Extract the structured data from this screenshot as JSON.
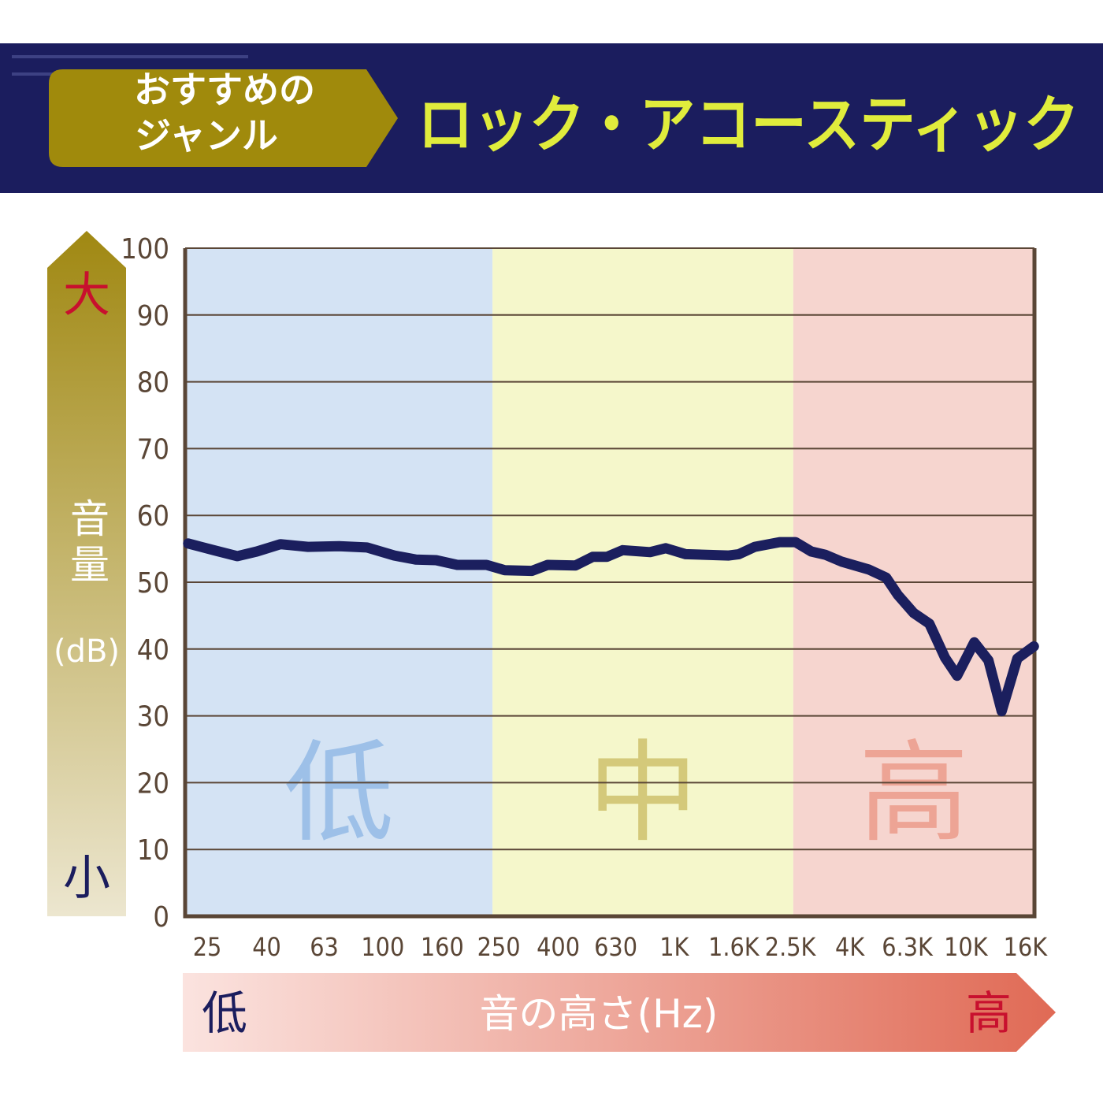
{
  "header": {
    "label_lines": [
      "おすすめの",
      "ジャンル"
    ],
    "genre": "ロック・アコースティック"
  },
  "chart_data": {
    "type": "line",
    "y_axis_label": {
      "top": "大",
      "label": "音量",
      "unit": "(dB)",
      "bottom": "小"
    },
    "x_axis_label": {
      "low": "低",
      "label": "音の高さ(Hz)",
      "high": "高"
    },
    "xscale": "log",
    "xlim": [
      21,
      17200
    ],
    "xticks": [
      25,
      40,
      63,
      100,
      160,
      250,
      400,
      630,
      {
        "value": 1000,
        "label": "1K"
      },
      {
        "value": 1600,
        "label": "1.6K"
      },
      {
        "value": 2500,
        "label": "2.5K"
      },
      {
        "value": 4000,
        "label": "4K"
      },
      {
        "value": 6300,
        "label": "6.3K"
      },
      {
        "value": 10000,
        "label": "10K"
      },
      {
        "value": 16000,
        "label": "16K"
      }
    ],
    "ylim": [
      0,
      100
    ],
    "yticks": [
      0,
      10,
      20,
      30,
      40,
      50,
      60,
      70,
      80,
      90,
      100
    ],
    "grid": true,
    "bands": [
      {
        "label": "低",
        "from": 21,
        "to": 238,
        "color": "#d4e3f4",
        "label_color": "#9dc0e8"
      },
      {
        "label": "中",
        "from": 238,
        "to": 2560,
        "color": "#f5f7cb",
        "label_color": "#d4c97a"
      },
      {
        "label": "高",
        "from": 2560,
        "to": 17200,
        "color": "#f6d5cf",
        "label_color": "#eda495"
      }
    ],
    "color": "#1b1f5e",
    "x": [
      21.5,
      26.3,
      31.7,
      37,
      44.6,
      55.4,
      70.9,
      88.3,
      109.6,
      129.7,
      152.4,
      180.2,
      227,
      262,
      325,
      368,
      458,
      525,
      587,
      665,
      826,
      935,
      1093,
      1538,
      1667,
      1887,
      2301,
      2606,
      2951,
      3301,
      3740,
      4646,
      5332,
      5847,
      6620,
      7498,
      8490,
      9333,
      10690,
      11960,
      13280,
      15030,
      17130
    ],
    "values": [
      55.8,
      54.8,
      53.9,
      54.6,
      55.7,
      55.3,
      55.4,
      55.2,
      54.0,
      53.4,
      53.3,
      52.6,
      52.6,
      51.8,
      51.7,
      52.6,
      52.5,
      53.8,
      53.8,
      54.8,
      54.5,
      55.1,
      54.2,
      54.0,
      54.2,
      55.3,
      56.0,
      56.0,
      54.6,
      54.1,
      53.1,
      51.9,
      50.7,
      48.1,
      45.4,
      43.8,
      38.7,
      36.0,
      41.0,
      38.3,
      30.7,
      38.6,
      40.4
    ]
  }
}
